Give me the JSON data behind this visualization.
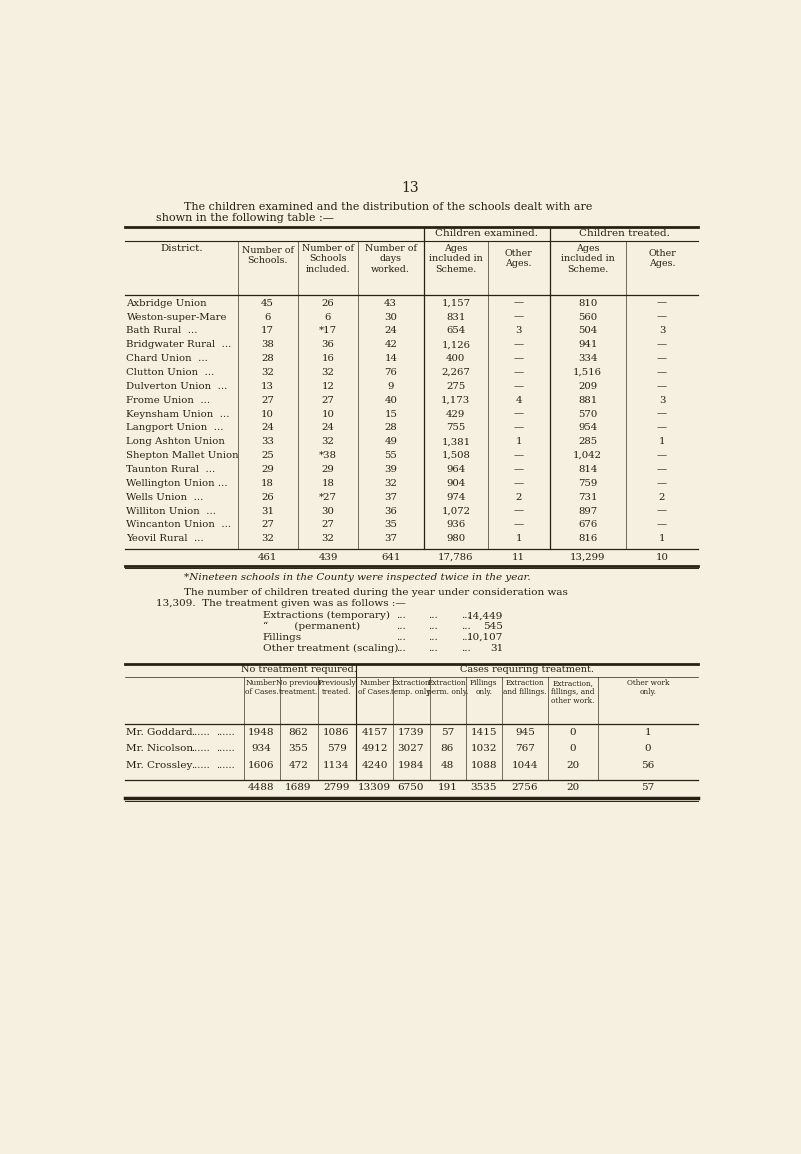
{
  "bg_color": "#f5f0e0",
  "text_color": "#2a2015",
  "page_number": "13",
  "intro_line1": "The children examined and the distribution of the schools dealt with are",
  "intro_line2": "shown in the following table :—",
  "table1_rows": [
    [
      "Axbridge Union",
      "45",
      "26",
      "43",
      "1,157",
      "—",
      "810",
      "—"
    ],
    [
      "Weston-super-Mare",
      "6",
      "6",
      "30",
      "831",
      "—",
      "560",
      "—"
    ],
    [
      "Bath Rural  ...",
      "17",
      "*17",
      "24",
      "654",
      "3",
      "504",
      "3"
    ],
    [
      "Bridgwater Rural  ...",
      "38",
      "36",
      "42",
      "1,126",
      "—",
      "941",
      "—"
    ],
    [
      "Chard Union  ...",
      "28",
      "16",
      "14",
      "400",
      "—",
      "334",
      "—"
    ],
    [
      "Clutton Union  ...",
      "32",
      "32",
      "76",
      "2,267",
      "—",
      "1,516",
      "—"
    ],
    [
      "Dulverton Union  ...",
      "13",
      "12",
      "9",
      "275",
      "—",
      "209",
      "—"
    ],
    [
      "Frome Union  ...",
      "27",
      "27",
      "40",
      "1,173",
      "4",
      "881",
      "3"
    ],
    [
      "Keynsham Union  ...",
      "10",
      "10",
      "15",
      "429",
      "—",
      "570",
      "—"
    ],
    [
      "Langport Union  ...",
      "24",
      "24",
      "28",
      "755",
      "—",
      "954",
      "—"
    ],
    [
      "Long Ashton Union",
      "33",
      "32",
      "49",
      "1,381",
      "1",
      "285",
      "1"
    ],
    [
      "Shepton Mallet Union",
      "25",
      "*38",
      "55",
      "1,508",
      "—",
      "1,042",
      "—"
    ],
    [
      "Taunton Rural  ...",
      "29",
      "29",
      "39",
      "964",
      "—",
      "814",
      "—"
    ],
    [
      "Wellington Union ...",
      "18",
      "18",
      "32",
      "904",
      "—",
      "759",
      "—"
    ],
    [
      "Wells Union  ...",
      "26",
      "*27",
      "37",
      "974",
      "2",
      "731",
      "2"
    ],
    [
      "Williton Union  ...",
      "31",
      "30",
      "36",
      "1,072",
      "—",
      "897",
      "—"
    ],
    [
      "Wincanton Union  ...",
      "27",
      "27",
      "35",
      "936",
      "—",
      "676",
      "—"
    ],
    [
      "Yeovil Rural  ...",
      "32",
      "32",
      "37",
      "980",
      "1",
      "816",
      "1"
    ]
  ],
  "table1_totals": [
    "",
    "461",
    "439",
    "641",
    "17,786",
    "11",
    "13,299",
    "10"
  ],
  "footnote": "*Nineteen schools in the County were inspected twice in the year.",
  "para_line1": "The number of children treated during the year under consideration was",
  "para_line2": "13,309.  The treatment given was as follows :—",
  "treatment": [
    [
      "Extractions (temporary)",
      "14,449"
    ],
    [
      "“        (permanent)",
      "545"
    ],
    [
      "Fillings",
      "10,107"
    ],
    [
      "Other treatment (scaling)",
      "31"
    ]
  ],
  "table2_rows": [
    [
      "Mr. Goddard",
      "1948",
      "862",
      "1086",
      "4157",
      "1739",
      "57",
      "1415",
      "945",
      "0",
      "1"
    ],
    [
      "Mr. Nicolson",
      "934",
      "355",
      "579",
      "4912",
      "3027",
      "86",
      "1032",
      "767",
      "0",
      "0"
    ],
    [
      "Mr. Crossley",
      "1606",
      "472",
      "1134",
      "4240",
      "1984",
      "48",
      "1088",
      "1044",
      "20",
      "56"
    ]
  ],
  "table2_totals": [
    "4488",
    "1689",
    "2799",
    "13309",
    "6750",
    "191",
    "3535",
    "2756",
    "20",
    "57"
  ]
}
